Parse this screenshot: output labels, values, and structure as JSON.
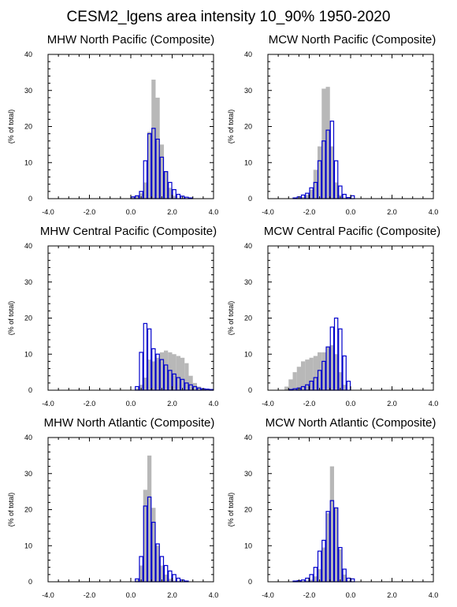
{
  "title": "CESM2_lgens area intensity 10_90% 1950-2020",
  "colors": {
    "gray_bar": "#b8b8b8",
    "blue_outline": "#0000cc",
    "axis": "#000000"
  },
  "chart_data": [
    {
      "type": "bar",
      "title": "MHW North Pacific (Composite)",
      "ylabel": "(% of total)",
      "xlim": [
        -4,
        4
      ],
      "ylim": [
        0,
        40
      ],
      "xticks": [
        "-4.0",
        "-2.0",
        "0.0",
        "2.0",
        "4.0"
      ],
      "yticks": [
        "0",
        "10",
        "20",
        "30",
        "40"
      ],
      "bin_width": 0.2,
      "series": [
        {
          "x": [
            0.0,
            0.2,
            0.4,
            0.6,
            0.8,
            1.0,
            1.2,
            1.4,
            1.6,
            1.8,
            2.0
          ],
          "values": [
            0.4,
            0.8,
            1.5,
            4.5,
            18.5,
            33.0,
            28.0,
            15.0,
            7.5,
            3.0,
            0.8
          ]
        },
        {
          "x": [
            0.0,
            0.2,
            0.4,
            0.6,
            0.8,
            1.0,
            1.2,
            1.4,
            1.6,
            1.8,
            2.0,
            2.2,
            2.4,
            2.6,
            2.8
          ],
          "values": [
            0.5,
            0.8,
            2.0,
            10.5,
            18.0,
            19.5,
            16.5,
            11.5,
            7.5,
            4.5,
            2.5,
            1.2,
            0.7,
            0.4,
            0.2
          ]
        }
      ]
    },
    {
      "type": "bar",
      "title": "MCW North Pacific (Composite)",
      "ylabel": "(% of total)",
      "xlim": [
        -4,
        4
      ],
      "ylim": [
        0,
        40
      ],
      "xticks": [
        "-4.0",
        "-2.0",
        "0.0",
        "2.0",
        "4.0"
      ],
      "yticks": [
        "0",
        "10",
        "20",
        "30",
        "40"
      ],
      "bin_width": 0.2,
      "series": [
        {
          "x": [
            -2.6,
            -2.4,
            -2.2,
            -2.0,
            -1.8,
            -1.6,
            -1.4,
            -1.2,
            -1.0,
            -0.8,
            -0.6,
            -0.4
          ],
          "values": [
            0.2,
            0.5,
            1.0,
            2.5,
            8.0,
            14.5,
            30.5,
            31.0,
            14.5,
            4.5,
            1.0,
            0.3
          ]
        },
        {
          "x": [
            -2.8,
            -2.6,
            -2.4,
            -2.2,
            -2.0,
            -1.8,
            -1.6,
            -1.4,
            -1.2,
            -1.0,
            -0.8,
            -0.6,
            -0.4,
            -0.2,
            0.0
          ],
          "values": [
            0.2,
            0.5,
            1.0,
            1.5,
            3.0,
            4.5,
            10.5,
            16.0,
            19.0,
            21.5,
            10.5,
            3.5,
            1.2,
            0.3,
            0.8
          ]
        }
      ]
    },
    {
      "type": "bar",
      "title": "MHW Central Pacific (Composite)",
      "ylabel": "(% of total)",
      "xlim": [
        -4,
        4
      ],
      "ylim": [
        0,
        40
      ],
      "xticks": [
        "-4.0",
        "-2.0",
        "0.0",
        "2.0",
        "4.0"
      ],
      "yticks": [
        "0",
        "10",
        "20",
        "30",
        "40"
      ],
      "bin_width": 0.2,
      "series": [
        {
          "x": [
            0.2,
            0.4,
            0.6,
            0.8,
            1.0,
            1.2,
            1.4,
            1.6,
            1.8,
            2.0,
            2.2,
            2.4,
            2.6,
            2.8,
            3.0,
            3.2,
            3.4,
            3.6
          ],
          "values": [
            0.5,
            1.5,
            3.5,
            8.5,
            8.0,
            9.0,
            10.5,
            11.0,
            10.5,
            10.0,
            9.5,
            9.0,
            7.5,
            4.0,
            2.0,
            1.0,
            0.4,
            0.2
          ]
        },
        {
          "x": [
            0.2,
            0.4,
            0.6,
            0.8,
            1.0,
            1.2,
            1.4,
            1.6,
            1.8,
            2.0,
            2.2,
            2.4,
            2.6,
            2.8,
            3.0,
            3.2,
            3.4,
            3.6,
            3.8
          ],
          "values": [
            1.0,
            10.5,
            18.5,
            17.0,
            11.5,
            10.0,
            8.5,
            7.0,
            5.5,
            4.5,
            3.5,
            3.0,
            2.0,
            1.5,
            1.0,
            0.6,
            0.4,
            0.3,
            0.2
          ]
        }
      ]
    },
    {
      "type": "bar",
      "title": "MCW Central Pacific (Composite)",
      "ylabel": "(% of total)",
      "xlim": [
        -4,
        4
      ],
      "ylim": [
        0,
        40
      ],
      "xticks": [
        "-4.0",
        "-2.0",
        "0.0",
        "2.0",
        "4.0"
      ],
      "yticks": [
        "0",
        "10",
        "20",
        "30",
        "40"
      ],
      "bin_width": 0.2,
      "series": [
        {
          "x": [
            -3.2,
            -3.0,
            -2.8,
            -2.6,
            -2.4,
            -2.2,
            -2.0,
            -1.8,
            -1.6,
            -1.4,
            -1.2,
            -1.0,
            -0.8,
            -0.6,
            -0.4
          ],
          "values": [
            1.0,
            3.0,
            5.0,
            6.5,
            8.0,
            8.5,
            9.0,
            9.5,
            10.5,
            10.5,
            12.0,
            12.5,
            10.0,
            5.0,
            1.5
          ]
        },
        {
          "x": [
            -3.0,
            -2.8,
            -2.6,
            -2.4,
            -2.2,
            -2.0,
            -1.8,
            -1.6,
            -1.4,
            -1.2,
            -1.0,
            -0.8,
            -0.6,
            -0.4,
            -0.2
          ],
          "values": [
            0.2,
            0.4,
            0.6,
            1.0,
            1.5,
            2.5,
            3.5,
            5.5,
            8.0,
            12.0,
            17.5,
            20.0,
            17.0,
            9.5,
            2.5
          ]
        }
      ]
    },
    {
      "type": "bar",
      "title": "MHW North Atlantic (Composite)",
      "ylabel": "(% of total)",
      "xlim": [
        -4,
        4
      ],
      "ylim": [
        0,
        40
      ],
      "xticks": [
        "-4.0",
        "-2.0",
        "0.0",
        "2.0",
        "4.0"
      ],
      "yticks": [
        "0",
        "10",
        "20",
        "30",
        "40"
      ],
      "bin_width": 0.2,
      "series": [
        {
          "x": [
            0.2,
            0.4,
            0.6,
            0.8,
            1.0,
            1.2,
            1.4,
            1.6,
            1.8,
            2.0,
            2.2
          ],
          "values": [
            0.5,
            4.5,
            25.5,
            35.0,
            20.5,
            10.0,
            4.5,
            2.0,
            0.8,
            0.3,
            0.2
          ]
        },
        {
          "x": [
            0.2,
            0.4,
            0.6,
            0.8,
            1.0,
            1.2,
            1.4,
            1.6,
            1.8,
            2.0,
            2.2,
            2.4,
            2.6
          ],
          "values": [
            0.8,
            7.0,
            21.0,
            23.5,
            16.5,
            10.5,
            7.0,
            4.5,
            3.0,
            2.0,
            1.0,
            0.5,
            0.2
          ]
        }
      ]
    },
    {
      "type": "bar",
      "title": "MCW North Atlantic (Composite)",
      "ylabel": "(% of total)",
      "xlim": [
        -4,
        4
      ],
      "ylim": [
        0,
        40
      ],
      "xticks": [
        "-4.0",
        "-2.0",
        "0.0",
        "2.0",
        "4.0"
      ],
      "yticks": [
        "0",
        "10",
        "20",
        "30",
        "40"
      ],
      "bin_width": 0.2,
      "series": [
        {
          "x": [
            -2.2,
            -2.0,
            -1.8,
            -1.6,
            -1.4,
            -1.2,
            -1.0,
            -0.8,
            -0.6,
            -0.4,
            -0.2
          ],
          "values": [
            0.3,
            0.6,
            1.5,
            3.5,
            9.5,
            19.0,
            32.0,
            20.5,
            9.0,
            2.0,
            0.3
          ]
        },
        {
          "x": [
            -2.8,
            -2.6,
            -2.4,
            -2.2,
            -2.0,
            -1.8,
            -1.6,
            -1.4,
            -1.2,
            -1.0,
            -0.8,
            -0.6,
            -0.4,
            -0.2,
            0.0
          ],
          "values": [
            0.2,
            0.3,
            0.5,
            1.0,
            2.0,
            4.0,
            8.5,
            11.5,
            19.5,
            22.5,
            20.5,
            9.5,
            3.5,
            1.0,
            0.8
          ]
        }
      ]
    }
  ]
}
